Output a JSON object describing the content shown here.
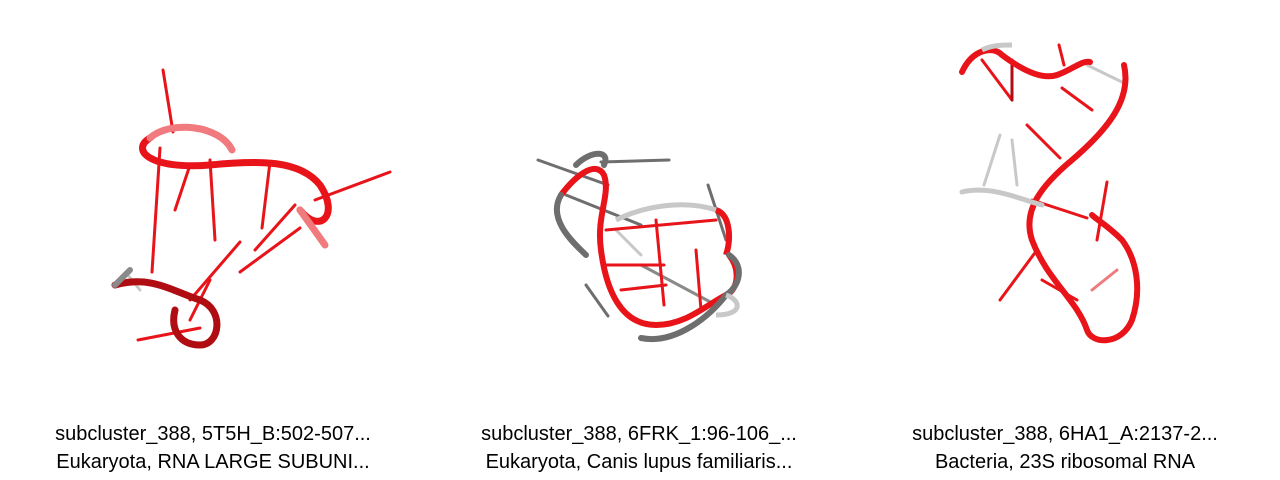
{
  "panels": [
    {
      "id": "panel-1",
      "line1": "subcluster_388, 5T5H_B:502-507...",
      "line2": "Eukaryota, RNA LARGE SUBUNI..."
    },
    {
      "id": "panel-2",
      "line1": "subcluster_388, 6FRK_1:96-106_...",
      "line2": "Eukaryota, Canis lupus familiaris..."
    },
    {
      "id": "panel-3",
      "line1": "subcluster_388, 6HA1_A:2137-2...",
      "line2": "Bacteria, 23S ribosomal RNA"
    }
  ],
  "colors": {
    "strand_red": "#e8141a",
    "strand_dark_red": "#b00d12",
    "strand_pink": "#f07a7d",
    "strand_gray": "#6e6e6e",
    "strand_light_gray": "#c8c8c8"
  }
}
